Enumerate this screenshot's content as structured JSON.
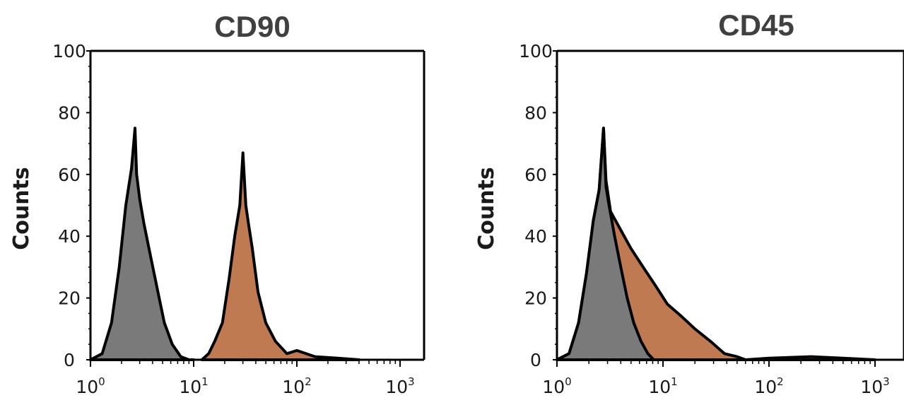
{
  "chart_data": [
    {
      "type": "area",
      "title": "CD90",
      "xlabel": "",
      "ylabel": "Counts",
      "x_scale": "log",
      "xlim": [
        1,
        1000
      ],
      "ylim": [
        0,
        100
      ],
      "x_ticks": [
        "10^0",
        "10^1",
        "10^2",
        "10^3"
      ],
      "y_ticks": [
        "0",
        "20",
        "40",
        "60",
        "80",
        "100"
      ],
      "colors": {
        "control": "#7a7a7a",
        "stained": "#c07a52",
        "outline": "#000000"
      },
      "series": [
        {
          "x": [
            1.0,
            1.3,
            1.6,
            1.9,
            2.2,
            2.5,
            2.7,
            2.8,
            3.0,
            3.3,
            3.8,
            4.5,
            5.2,
            6.2,
            7.5,
            9.0,
            10.0
          ],
          "y": [
            0,
            2,
            12,
            30,
            50,
            62,
            75,
            60,
            52,
            44,
            34,
            22,
            12,
            5,
            1,
            0,
            0
          ]
        },
        {
          "x": [
            12,
            14,
            16,
            19,
            22,
            25,
            28,
            30,
            32,
            34,
            37,
            42,
            50,
            62,
            80,
            100,
            150,
            250,
            400
          ],
          "y": [
            0,
            2,
            6,
            12,
            26,
            40,
            50,
            67,
            50,
            44,
            36,
            22,
            12,
            6,
            2,
            3,
            1,
            0.5,
            0
          ]
        }
      ]
    },
    {
      "type": "area",
      "title": "CD45",
      "xlabel": "",
      "ylabel": "Counts",
      "x_scale": "log",
      "xlim": [
        1,
        1000
      ],
      "ylim": [
        0,
        100
      ],
      "x_ticks": [
        "10^0",
        "10^1",
        "10^2",
        "10^3"
      ],
      "y_ticks": [
        "0",
        "20",
        "40",
        "60",
        "80",
        "100"
      ],
      "colors": {
        "control": "#7a7a7a",
        "stained": "#c07a52",
        "outline": "#000000"
      },
      "series": [
        {
          "x": [
            1.0,
            1.3,
            1.6,
            1.9,
            2.2,
            2.5,
            2.75,
            2.9,
            3.1,
            3.5,
            4.0,
            4.6,
            5.3,
            6.2,
            7.2,
            8.2,
            9.0
          ],
          "y": [
            0,
            2,
            12,
            28,
            45,
            55,
            75,
            56,
            50,
            40,
            30,
            20,
            12,
            6,
            2,
            0,
            0
          ]
        },
        {
          "x": [
            1.0,
            1.3,
            1.6,
            1.9,
            2.2,
            2.5,
            2.75,
            2.9,
            3.2,
            4.0,
            5.0,
            6.5,
            8.5,
            11,
            15,
            20,
            28,
            38,
            50,
            60,
            100,
            250,
            500,
            1000
          ],
          "y": [
            0,
            2,
            12,
            28,
            45,
            55,
            75,
            58,
            48,
            42,
            36,
            30,
            24,
            18,
            14,
            10,
            6,
            2,
            1,
            0,
            0.5,
            1,
            0.5,
            0
          ]
        }
      ]
    }
  ]
}
